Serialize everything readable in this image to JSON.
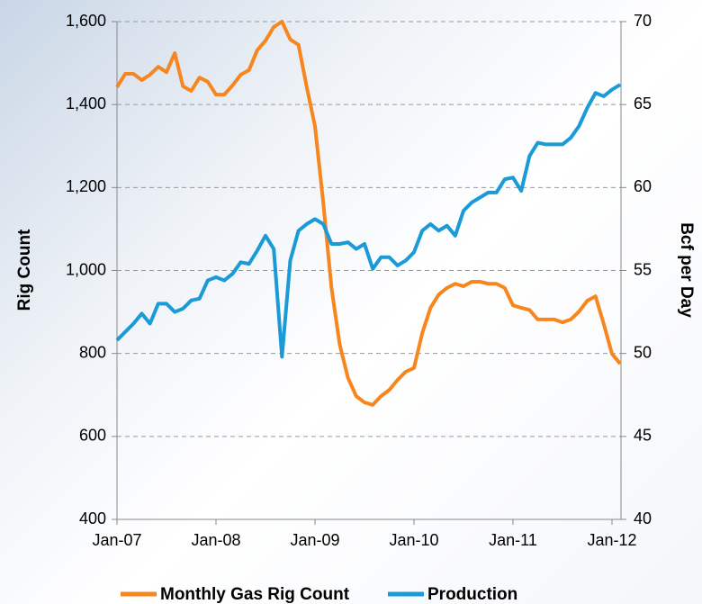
{
  "chart_data": {
    "type": "line",
    "ylabel": "Rig Count",
    "y2label": "Bcf per Day",
    "categories": [
      "Jan-07",
      null,
      null,
      null,
      null,
      null,
      null,
      null,
      null,
      null,
      null,
      null,
      "Jan-08",
      null,
      null,
      null,
      null,
      null,
      null,
      null,
      null,
      null,
      null,
      null,
      "Jan-09",
      null,
      null,
      null,
      null,
      null,
      null,
      null,
      null,
      null,
      null,
      null,
      "Jan-10",
      null,
      null,
      null,
      null,
      null,
      null,
      null,
      null,
      null,
      null,
      null,
      "Jan-11",
      null,
      null,
      null,
      null,
      null,
      null,
      null,
      null,
      null,
      null,
      null,
      "Jan-12",
      null
    ],
    "series": [
      {
        "name": "Monthly Gas Rig Count",
        "color": "#f7861e",
        "axis": "y",
        "values": [
          1442,
          1474,
          1474,
          1459,
          1472,
          1491,
          1478,
          1524,
          1444,
          1433,
          1465,
          1455,
          1424,
          1424,
          1446,
          1472,
          1483,
          1531,
          1554,
          1587,
          1600,
          1557,
          1544,
          1442,
          1348,
          1164,
          958,
          821,
          741,
          697,
          682,
          676,
          697,
          712,
          736,
          756,
          765,
          849,
          910,
          942,
          958,
          968,
          962,
          973,
          973,
          968,
          968,
          958,
          916,
          910,
          905,
          882,
          882,
          882,
          875,
          882,
          901,
          927,
          938,
          871,
          799,
          775
        ]
      },
      {
        "name": "Production",
        "color": "#1a9ad6",
        "axis": "y2",
        "values": [
          50.8,
          51.3,
          51.8,
          52.4,
          51.8,
          53.0,
          53.0,
          52.5,
          52.7,
          53.2,
          53.3,
          54.4,
          54.6,
          54.4,
          54.8,
          55.5,
          55.4,
          56.2,
          57.1,
          56.3,
          49.8,
          55.6,
          57.4,
          57.8,
          58.1,
          57.8,
          56.6,
          56.6,
          56.7,
          56.3,
          56.6,
          55.1,
          55.8,
          55.8,
          55.3,
          55.6,
          56.1,
          57.4,
          57.8,
          57.4,
          57.7,
          57.1,
          58.6,
          59.1,
          59.4,
          59.7,
          59.7,
          60.5,
          60.6,
          59.8,
          61.9,
          62.7,
          62.6,
          62.6,
          62.6,
          63.0,
          63.7,
          64.8,
          65.7,
          65.5,
          65.9,
          66.2
        ]
      }
    ],
    "ylim": [
      400,
      1600
    ],
    "yticks": [
      {
        "value": 400,
        "label": "400"
      },
      {
        "value": 600,
        "label": "600"
      },
      {
        "value": 800,
        "label": "800"
      },
      {
        "value": 1000,
        "label": "1,000"
      },
      {
        "value": 1200,
        "label": "1,200"
      },
      {
        "value": 1400,
        "label": "1,400"
      },
      {
        "value": 1600,
        "label": "1,600"
      }
    ],
    "y2lim": [
      40,
      70
    ],
    "y2ticks": [
      40,
      45,
      50,
      55,
      60,
      65,
      70
    ],
    "grid": true
  }
}
